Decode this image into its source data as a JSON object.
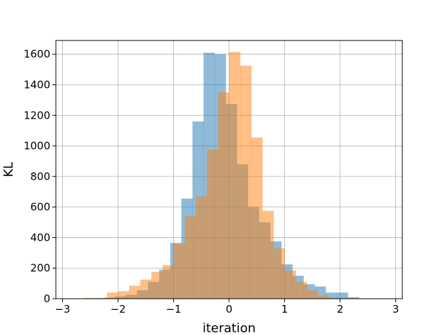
{
  "chart_data": {
    "type": "bar",
    "title": "",
    "xlabel": "iteration",
    "ylabel": "KL",
    "xlim": [
      -3.12,
      3.12
    ],
    "ylim": [
      0,
      1690
    ],
    "grid": true,
    "legend": "none",
    "xticks": [
      -3,
      -2,
      -1,
      0,
      1,
      2,
      3
    ],
    "xtick_labels": [
      "−3",
      "−2",
      "−1",
      "0",
      "1",
      "2",
      "3"
    ],
    "yticks": [
      0,
      200,
      400,
      600,
      800,
      1000,
      1200,
      1400,
      1600
    ],
    "ytick_labels": [
      "0",
      "200",
      "400",
      "600",
      "800",
      "1000",
      "1200",
      "1400",
      "1600"
    ],
    "series": [
      {
        "color": "#1f77b4",
        "opacity": 0.5,
        "bin_start": -2.46,
        "bin_width": 0.2,
        "values": [
          3,
          7,
          15,
          25,
          55,
          110,
          190,
          365,
          655,
          1160,
          1610,
          1600,
          1275,
          880,
          600,
          500,
          375,
          225,
          150,
          95,
          80,
          40,
          40,
          10
        ]
      },
      {
        "color": "#ff7f0e",
        "opacity": 0.5,
        "bin_start": -2.6,
        "bin_width": 0.2,
        "values": [
          5,
          5,
          40,
          50,
          85,
          125,
          175,
          220,
          360,
          540,
          670,
          975,
          1350,
          1615,
          1525,
          1055,
          575,
          330,
          185,
          110,
          55,
          20,
          5
        ]
      }
    ]
  }
}
